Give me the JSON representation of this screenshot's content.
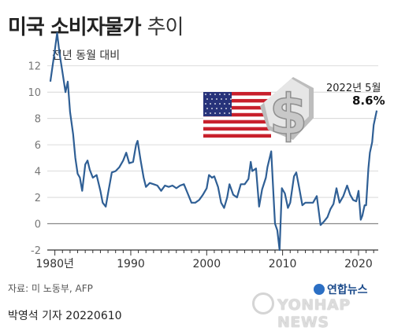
{
  "header": {
    "title_bold": "미국 소비자물가",
    "title_light": "추이"
  },
  "ylabel": "전년 동월 대비",
  "annotation": {
    "date": "2022년 5월",
    "value": "8.6%"
  },
  "source": "자료: 미 노동부, AFP",
  "byline": "박영석 기자  20220610",
  "logo": {
    "ko": "연합뉴스",
    "en": "YONHAP NEWS"
  },
  "icons": {
    "flag": "us-flag-icon",
    "dollar": "dollar-sign-icon"
  },
  "colors": {
    "line": "#2f5f95",
    "grid": "#d0d0d0",
    "axis": "#333333"
  },
  "chart_data": {
    "type": "line",
    "title": "미국 소비자물가 추이",
    "ylabel": "전년 동월 대비",
    "ylim": [
      -2,
      13
    ],
    "xlim": [
      1979,
      2022.6
    ],
    "yticks": [
      -2,
      0,
      2,
      4,
      6,
      8,
      10,
      12
    ],
    "ytick_labels": [
      "-2",
      "0",
      "2",
      "4",
      "6",
      "8",
      "10",
      "12"
    ],
    "xticks": [
      1980,
      1990,
      2000,
      2010,
      2020
    ],
    "xtick_labels": [
      "1980년",
      "1990",
      "2000",
      "2010",
      "2020"
    ],
    "grid": "horizontal",
    "series": [
      {
        "x": [
          1979.4,
          1980.0,
          1980.3,
          1980.6,
          1981.0,
          1981.4,
          1981.7,
          1982.0,
          1982.4,
          1982.7,
          1983.0,
          1983.3,
          1983.6,
          1984.0,
          1984.3,
          1984.6,
          1985.0,
          1985.5,
          1986.0,
          1986.3,
          1986.7,
          1987.0,
          1987.5,
          1988.0,
          1988.5,
          1989.0,
          1989.4,
          1989.8,
          1990.3,
          1990.7,
          1990.9,
          1991.3,
          1991.7,
          1992.0,
          1992.5,
          1993.0,
          1993.5,
          1994.0,
          1994.5,
          1995.0,
          1995.5,
          1996.0,
          1996.5,
          1997.0,
          1997.5,
          1998.0,
          1998.5,
          1999.0,
          1999.5,
          2000.0,
          2000.3,
          2000.7,
          2001.0,
          2001.5,
          2001.9,
          2002.3,
          2002.7,
          2003.0,
          2003.5,
          2004.0,
          2004.5,
          2005.0,
          2005.5,
          2005.8,
          2006.0,
          2006.5,
          2006.9,
          2007.3,
          2007.8,
          2008.0,
          2008.5,
          2008.9,
          2009.0,
          2009.3,
          2009.6,
          2009.9,
          2010.3,
          2010.7,
          2011.0,
          2011.5,
          2011.8,
          2012.2,
          2012.6,
          2013.0,
          2013.5,
          2014.0,
          2014.5,
          2015.0,
          2015.5,
          2015.9,
          2016.3,
          2016.7,
          2017.1,
          2017.5,
          2018.0,
          2018.5,
          2018.9,
          2019.3,
          2019.7,
          2020.0,
          2020.3,
          2020.5,
          2020.8,
          2021.0,
          2021.3,
          2021.5,
          2021.8,
          2022.0,
          2022.4
        ],
        "y": [
          10.8,
          13.2,
          14.5,
          13.0,
          11.5,
          10.0,
          10.8,
          8.5,
          6.8,
          5.0,
          3.8,
          3.5,
          2.5,
          4.5,
          4.8,
          4.1,
          3.5,
          3.7,
          2.5,
          1.6,
          1.3,
          2.3,
          3.9,
          4.0,
          4.3,
          4.8,
          5.4,
          4.6,
          4.7,
          6.0,
          6.3,
          4.8,
          3.5,
          2.8,
          3.1,
          3.0,
          2.9,
          2.5,
          2.9,
          2.8,
          2.9,
          2.7,
          2.9,
          3.0,
          2.3,
          1.6,
          1.6,
          1.8,
          2.2,
          2.7,
          3.7,
          3.5,
          3.6,
          2.8,
          1.6,
          1.2,
          2.0,
          3.0,
          2.2,
          2.0,
          3.0,
          3.0,
          3.4,
          4.7,
          4.0,
          4.2,
          1.3,
          2.6,
          3.5,
          4.3,
          5.5,
          1.1,
          0.0,
          -0.5,
          -2.0,
          2.7,
          2.3,
          1.2,
          1.6,
          3.6,
          3.9,
          2.7,
          1.4,
          1.6,
          1.6,
          1.6,
          2.1,
          -0.1,
          0.2,
          0.5,
          1.1,
          1.5,
          2.7,
          1.6,
          2.1,
          2.9,
          2.2,
          1.8,
          1.7,
          2.5,
          0.3,
          0.6,
          1.4,
          1.4,
          4.2,
          5.4,
          6.2,
          7.5,
          8.6
        ]
      }
    ]
  }
}
